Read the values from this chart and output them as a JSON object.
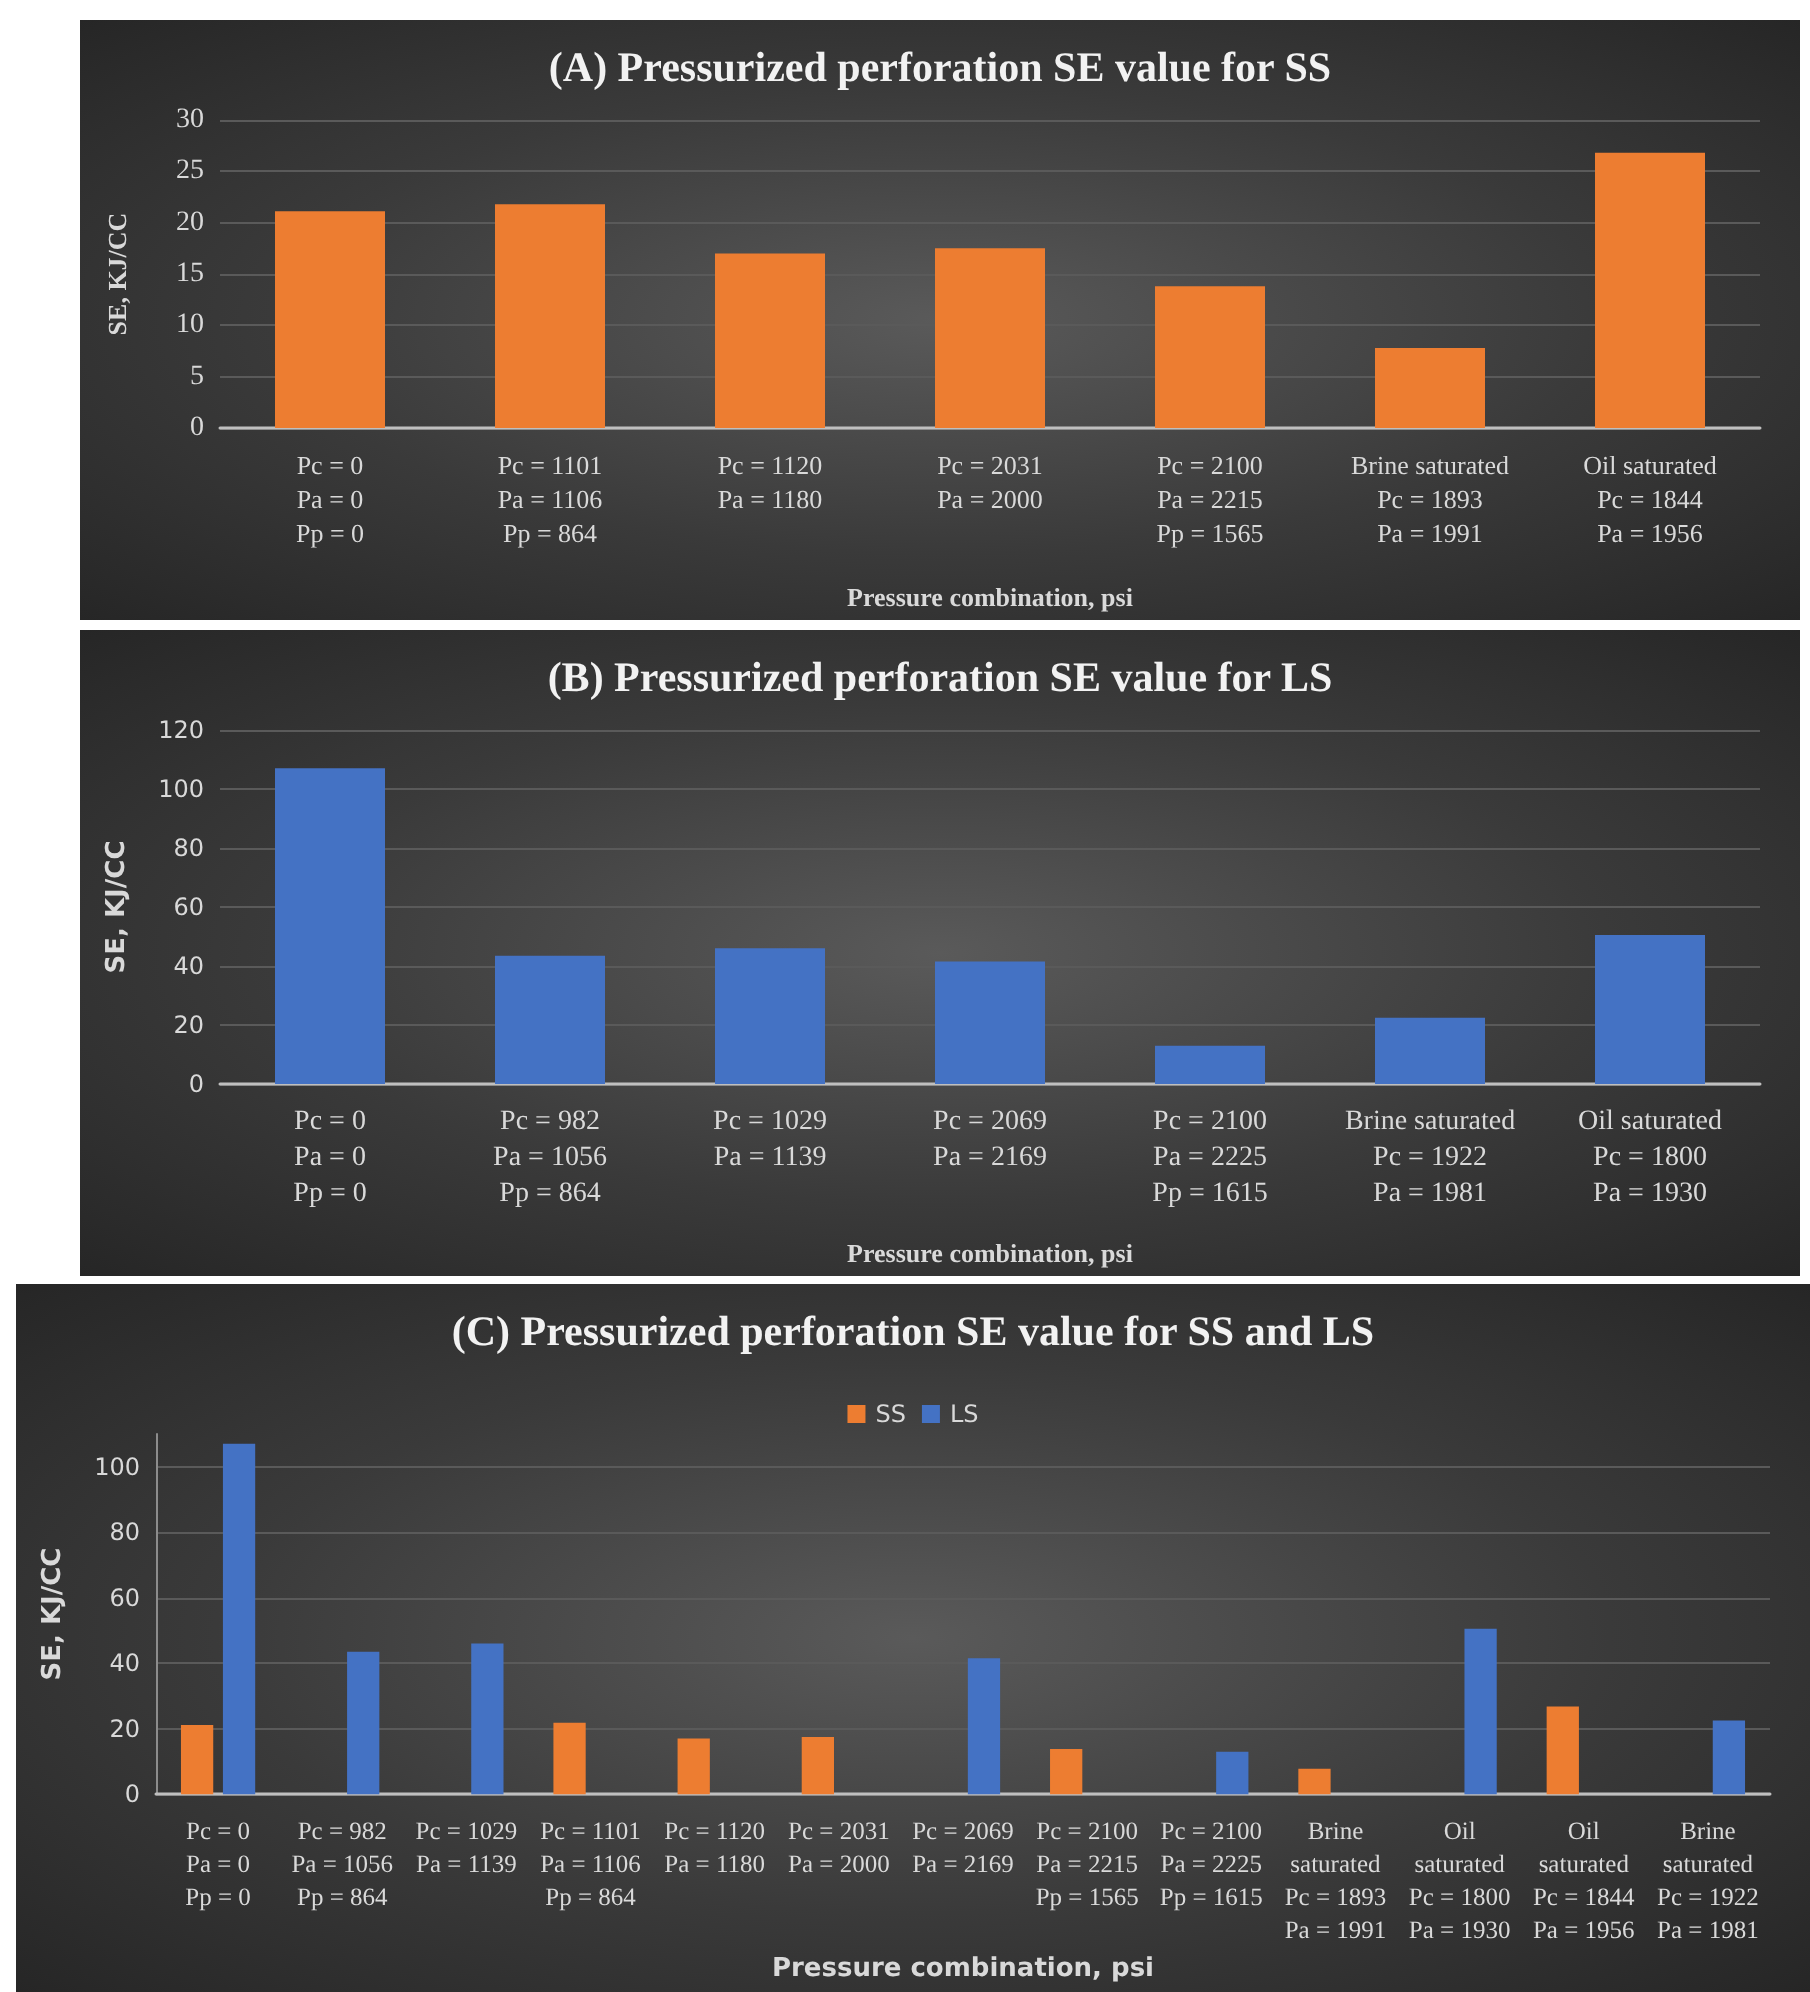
{
  "chart_data": [
    {
      "type": "bar",
      "title": "(A) Pressurized perforation SE value for SS",
      "xlabel": "Pressure combination, psi",
      "ylabel": "SE, KJ/CC",
      "categories": [
        "Pc = 0\nPa = 0\nPp = 0",
        "Pc = 1101\nPa = 1106\nPp = 864",
        "Pc = 1120\nPa = 1180",
        "Pc = 2031\nPa = 2000",
        "Pc = 2100\nPa = 2215\nPp = 1565",
        "Brine saturated\nPc = 1893\nPa = 1991",
        "Oil saturated\nPc = 1844\nPa = 1956"
      ],
      "values": [
        21.1,
        21.8,
        17,
        17.5,
        13.8,
        7.8,
        26.8
      ],
      "color": "#ed7d31",
      "ylim": [
        0,
        30
      ],
      "yticks": [
        0,
        5,
        10,
        15,
        20,
        25,
        30
      ],
      "grid": "y",
      "legend": false
    },
    {
      "type": "bar",
      "title": "(B) Pressurized perforation SE value for LS",
      "xlabel": "Pressure combination, psi",
      "ylabel": "SE, KJ/CC",
      "categories": [
        "Pc = 0\nPa = 0\nPp = 0",
        "Pc = 982\nPa = 1056\nPp = 864",
        "Pc = 1029\nPa = 1139",
        "Pc = 2069\nPa = 2169",
        "Pc = 2100\nPa = 2225\nPp = 1615",
        "Brine saturated\nPc = 1922\nPa = 1981",
        "Oil saturated\nPc = 1800\nPa = 1930"
      ],
      "values": [
        107,
        43.5,
        46,
        41.5,
        13,
        22.5,
        50.5
      ],
      "color": "#4472c4",
      "ylim": [
        0,
        120
      ],
      "yticks": [
        0,
        20,
        40,
        60,
        80,
        100,
        120
      ],
      "grid": "y",
      "legend": false
    },
    {
      "type": "bar",
      "title": "(C) Pressurized perforation SE value for SS and LS",
      "xlabel": "Pressure combination, psi",
      "ylabel": "SE, KJ/CC",
      "categories": [
        "Pc = 0\nPa = 0\nPp = 0",
        "Pc = 982\nPa = 1056\nPp = 864",
        "Pc = 1029\nPa = 1139",
        "Pc = 1101\nPa = 1106\nPp = 864",
        "Pc = 1120\nPa = 1180",
        "Pc = 2031\nPa = 2000",
        "Pc = 2069\nPa = 2169",
        "Pc = 2100\nPa = 2215\nPp = 1565",
        "Pc = 2100\nPa = 2225\nPp = 1615",
        "Brine\nsaturated\nPc = 1893\nPa = 1991",
        "Oil\nsaturated\nPc = 1800\nPa = 1930",
        "Oil\nsaturated\nPc = 1844\nPa = 1956",
        "Brine\nsaturated\nPc = 1922\nPa = 1981"
      ],
      "series": [
        {
          "name": "SS",
          "color": "#ed7d31",
          "values": [
            21.1,
            null,
            null,
            21.8,
            17,
            17.5,
            null,
            13.8,
            null,
            7.8,
            null,
            26.8,
            null
          ]
        },
        {
          "name": "LS",
          "color": "#4472c4",
          "values": [
            107,
            43.5,
            46,
            null,
            null,
            null,
            41.5,
            null,
            13,
            null,
            50.5,
            null,
            22.5
          ]
        }
      ],
      "ylim": [
        0,
        110
      ],
      "yticks": [
        0,
        20,
        40,
        60,
        80,
        100
      ],
      "grid": "y",
      "legend": "top"
    }
  ]
}
